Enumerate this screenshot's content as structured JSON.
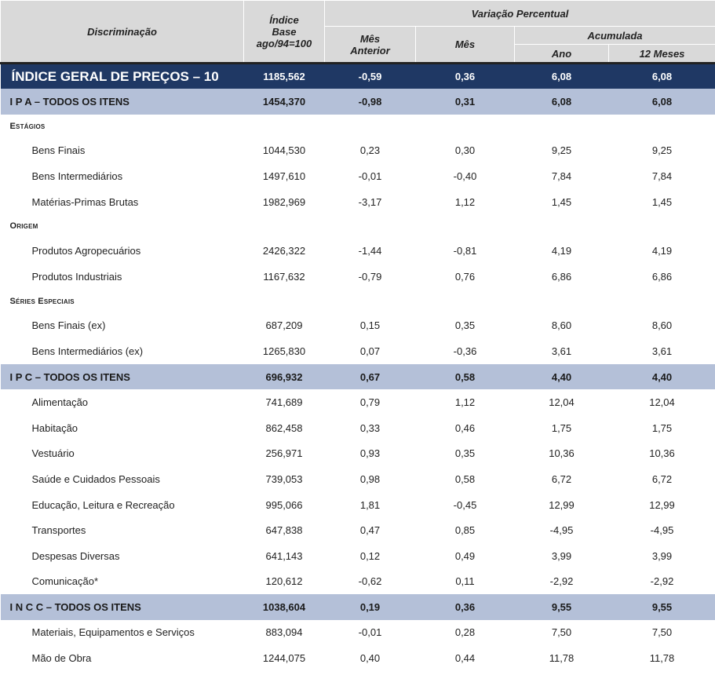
{
  "header": {
    "discriminacao": "Discriminação",
    "indice_line1": "Índice",
    "indice_line2": "Base",
    "indice_line3": "ago/94=100",
    "variacao": "Variação Percentual",
    "mes_anterior_line1": "Mês",
    "mes_anterior_line2": "Anterior",
    "mes": "Mês",
    "acumulada": "Acumulada",
    "ano": "Ano",
    "doze_meses": "12 Meses"
  },
  "rows": [
    {
      "type": "geral",
      "label": "ÍNDICE GERAL DE PREÇOS – 10",
      "indice": "1185,562",
      "mes_anterior": "-0,59",
      "mes": "0,36",
      "ano": "6,08",
      "doze": "6,08"
    },
    {
      "type": "group",
      "label": "I P A – TODOS OS ITENS",
      "indice": "1454,370",
      "mes_anterior": "-0,98",
      "mes": "0,31",
      "ano": "6,08",
      "doze": "6,08"
    },
    {
      "type": "sect",
      "label": "Estágios"
    },
    {
      "type": "item",
      "label": "Bens Finais",
      "indice": "1044,530",
      "mes_anterior": "0,23",
      "mes": "0,30",
      "ano": "9,25",
      "doze": "9,25"
    },
    {
      "type": "item",
      "label": "Bens Intermediários",
      "indice": "1497,610",
      "mes_anterior": "-0,01",
      "mes": "-0,40",
      "ano": "7,84",
      "doze": "7,84"
    },
    {
      "type": "item",
      "label": "Matérias-Primas Brutas",
      "indice": "1982,969",
      "mes_anterior": "-3,17",
      "mes": "1,12",
      "ano": "1,45",
      "doze": "1,45"
    },
    {
      "type": "sect",
      "label": "Origem"
    },
    {
      "type": "item",
      "label": "Produtos Agropecuários",
      "indice": "2426,322",
      "mes_anterior": "-1,44",
      "mes": "-0,81",
      "ano": "4,19",
      "doze": "4,19"
    },
    {
      "type": "item",
      "label": "Produtos Industriais",
      "indice": "1167,632",
      "mes_anterior": "-0,79",
      "mes": "0,76",
      "ano": "6,86",
      "doze": "6,86"
    },
    {
      "type": "sect",
      "label": "Séries Especiais"
    },
    {
      "type": "item",
      "label": "Bens Finais (ex)",
      "indice": "687,209",
      "mes_anterior": "0,15",
      "mes": "0,35",
      "ano": "8,60",
      "doze": "8,60"
    },
    {
      "type": "item",
      "label": "Bens Intermediários (ex)",
      "indice": "1265,830",
      "mes_anterior": "0,07",
      "mes": "-0,36",
      "ano": "3,61",
      "doze": "3,61"
    },
    {
      "type": "group",
      "label": "I P C – TODOS OS ITENS",
      "indice": "696,932",
      "mes_anterior": "0,67",
      "mes": "0,58",
      "ano": "4,40",
      "doze": "4,40"
    },
    {
      "type": "item",
      "label": "Alimentação",
      "indice": "741,689",
      "mes_anterior": "0,79",
      "mes": "1,12",
      "ano": "12,04",
      "doze": "12,04"
    },
    {
      "type": "item",
      "label": "Habitação",
      "indice": "862,458",
      "mes_anterior": "0,33",
      "mes": "0,46",
      "ano": "1,75",
      "doze": "1,75"
    },
    {
      "type": "item",
      "label": "Vestuário",
      "indice": "256,971",
      "mes_anterior": "0,93",
      "mes": "0,35",
      "ano": "10,36",
      "doze": "10,36"
    },
    {
      "type": "item",
      "label": "Saúde e Cuidados Pessoais",
      "indice": "739,053",
      "mes_anterior": "0,98",
      "mes": "0,58",
      "ano": "6,72",
      "doze": "6,72"
    },
    {
      "type": "item",
      "label": "Educação, Leitura e Recreação",
      "indice": "995,066",
      "mes_anterior": "1,81",
      "mes": "-0,45",
      "ano": "12,99",
      "doze": "12,99"
    },
    {
      "type": "item",
      "label": "Transportes",
      "indice": "647,838",
      "mes_anterior": "0,47",
      "mes": "0,85",
      "ano": "-4,95",
      "doze": "-4,95"
    },
    {
      "type": "item",
      "label": "Despesas Diversas",
      "indice": "641,143",
      "mes_anterior": "0,12",
      "mes": "0,49",
      "ano": "3,99",
      "doze": "3,99"
    },
    {
      "type": "item",
      "label": "Comunicação*",
      "indice": "120,612",
      "mes_anterior": "-0,62",
      "mes": "0,11",
      "ano": "-2,92",
      "doze": "-2,92"
    },
    {
      "type": "group",
      "label": "I N C C – TODOS OS ITENS",
      "indice": "1038,604",
      "mes_anterior": "0,19",
      "mes": "0,36",
      "ano": "9,55",
      "doze": "9,55"
    },
    {
      "type": "item",
      "label": "Materiais, Equipamentos e Serviços",
      "indice": "883,094",
      "mes_anterior": "-0,01",
      "mes": "0,28",
      "ano": "7,50",
      "doze": "7,50"
    },
    {
      "type": "item",
      "label": "Mão de Obra",
      "indice": "1244,075",
      "mes_anterior": "0,40",
      "mes": "0,44",
      "ano": "11,78",
      "doze": "11,78"
    }
  ],
  "colors": {
    "geral_bg": "#1f3864",
    "group_bg": "#b4c0d8",
    "header_bg": "#d9d9d9"
  }
}
